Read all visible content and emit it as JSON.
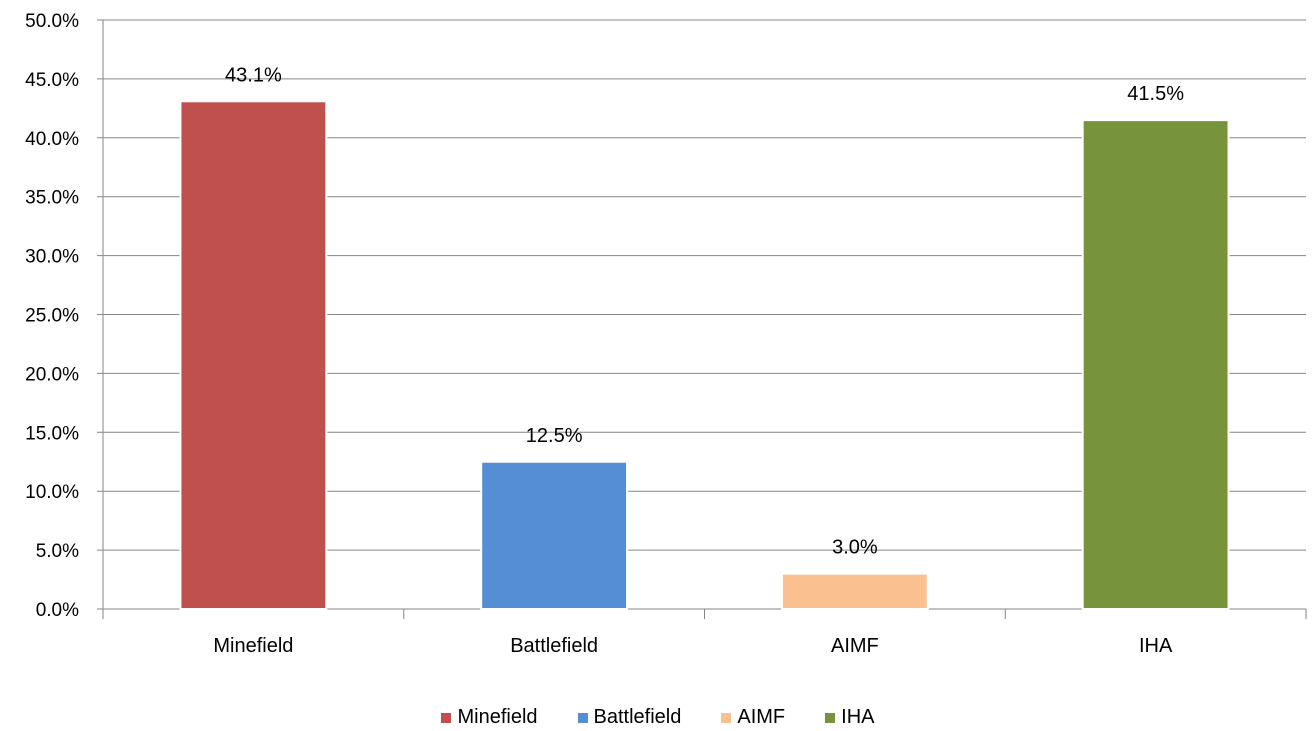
{
  "chart_data": {
    "type": "bar",
    "title": "",
    "xlabel": "",
    "ylabel": "",
    "categories": [
      "Minefield",
      "Battlefield",
      "AIMF",
      "IHA"
    ],
    "values": [
      43.1,
      12.5,
      3.0,
      41.5
    ],
    "data_labels": [
      "43.1%",
      "12.5%",
      "3.0%",
      "41.5%"
    ],
    "colors": [
      "#C0504D",
      "#558ED5",
      "#FAC090",
      "#77933C"
    ],
    "ylim": [
      0,
      50
    ],
    "yticks": [
      "0.0%",
      "5.0%",
      "10.0%",
      "15.0%",
      "20.0%",
      "25.0%",
      "30.0%",
      "35.0%",
      "40.0%",
      "45.0%",
      "50.0%"
    ],
    "grid": true,
    "legend_position": "bottom",
    "legend": [
      "Minefield",
      "Battlefield",
      "AIMF",
      "IHA"
    ]
  }
}
